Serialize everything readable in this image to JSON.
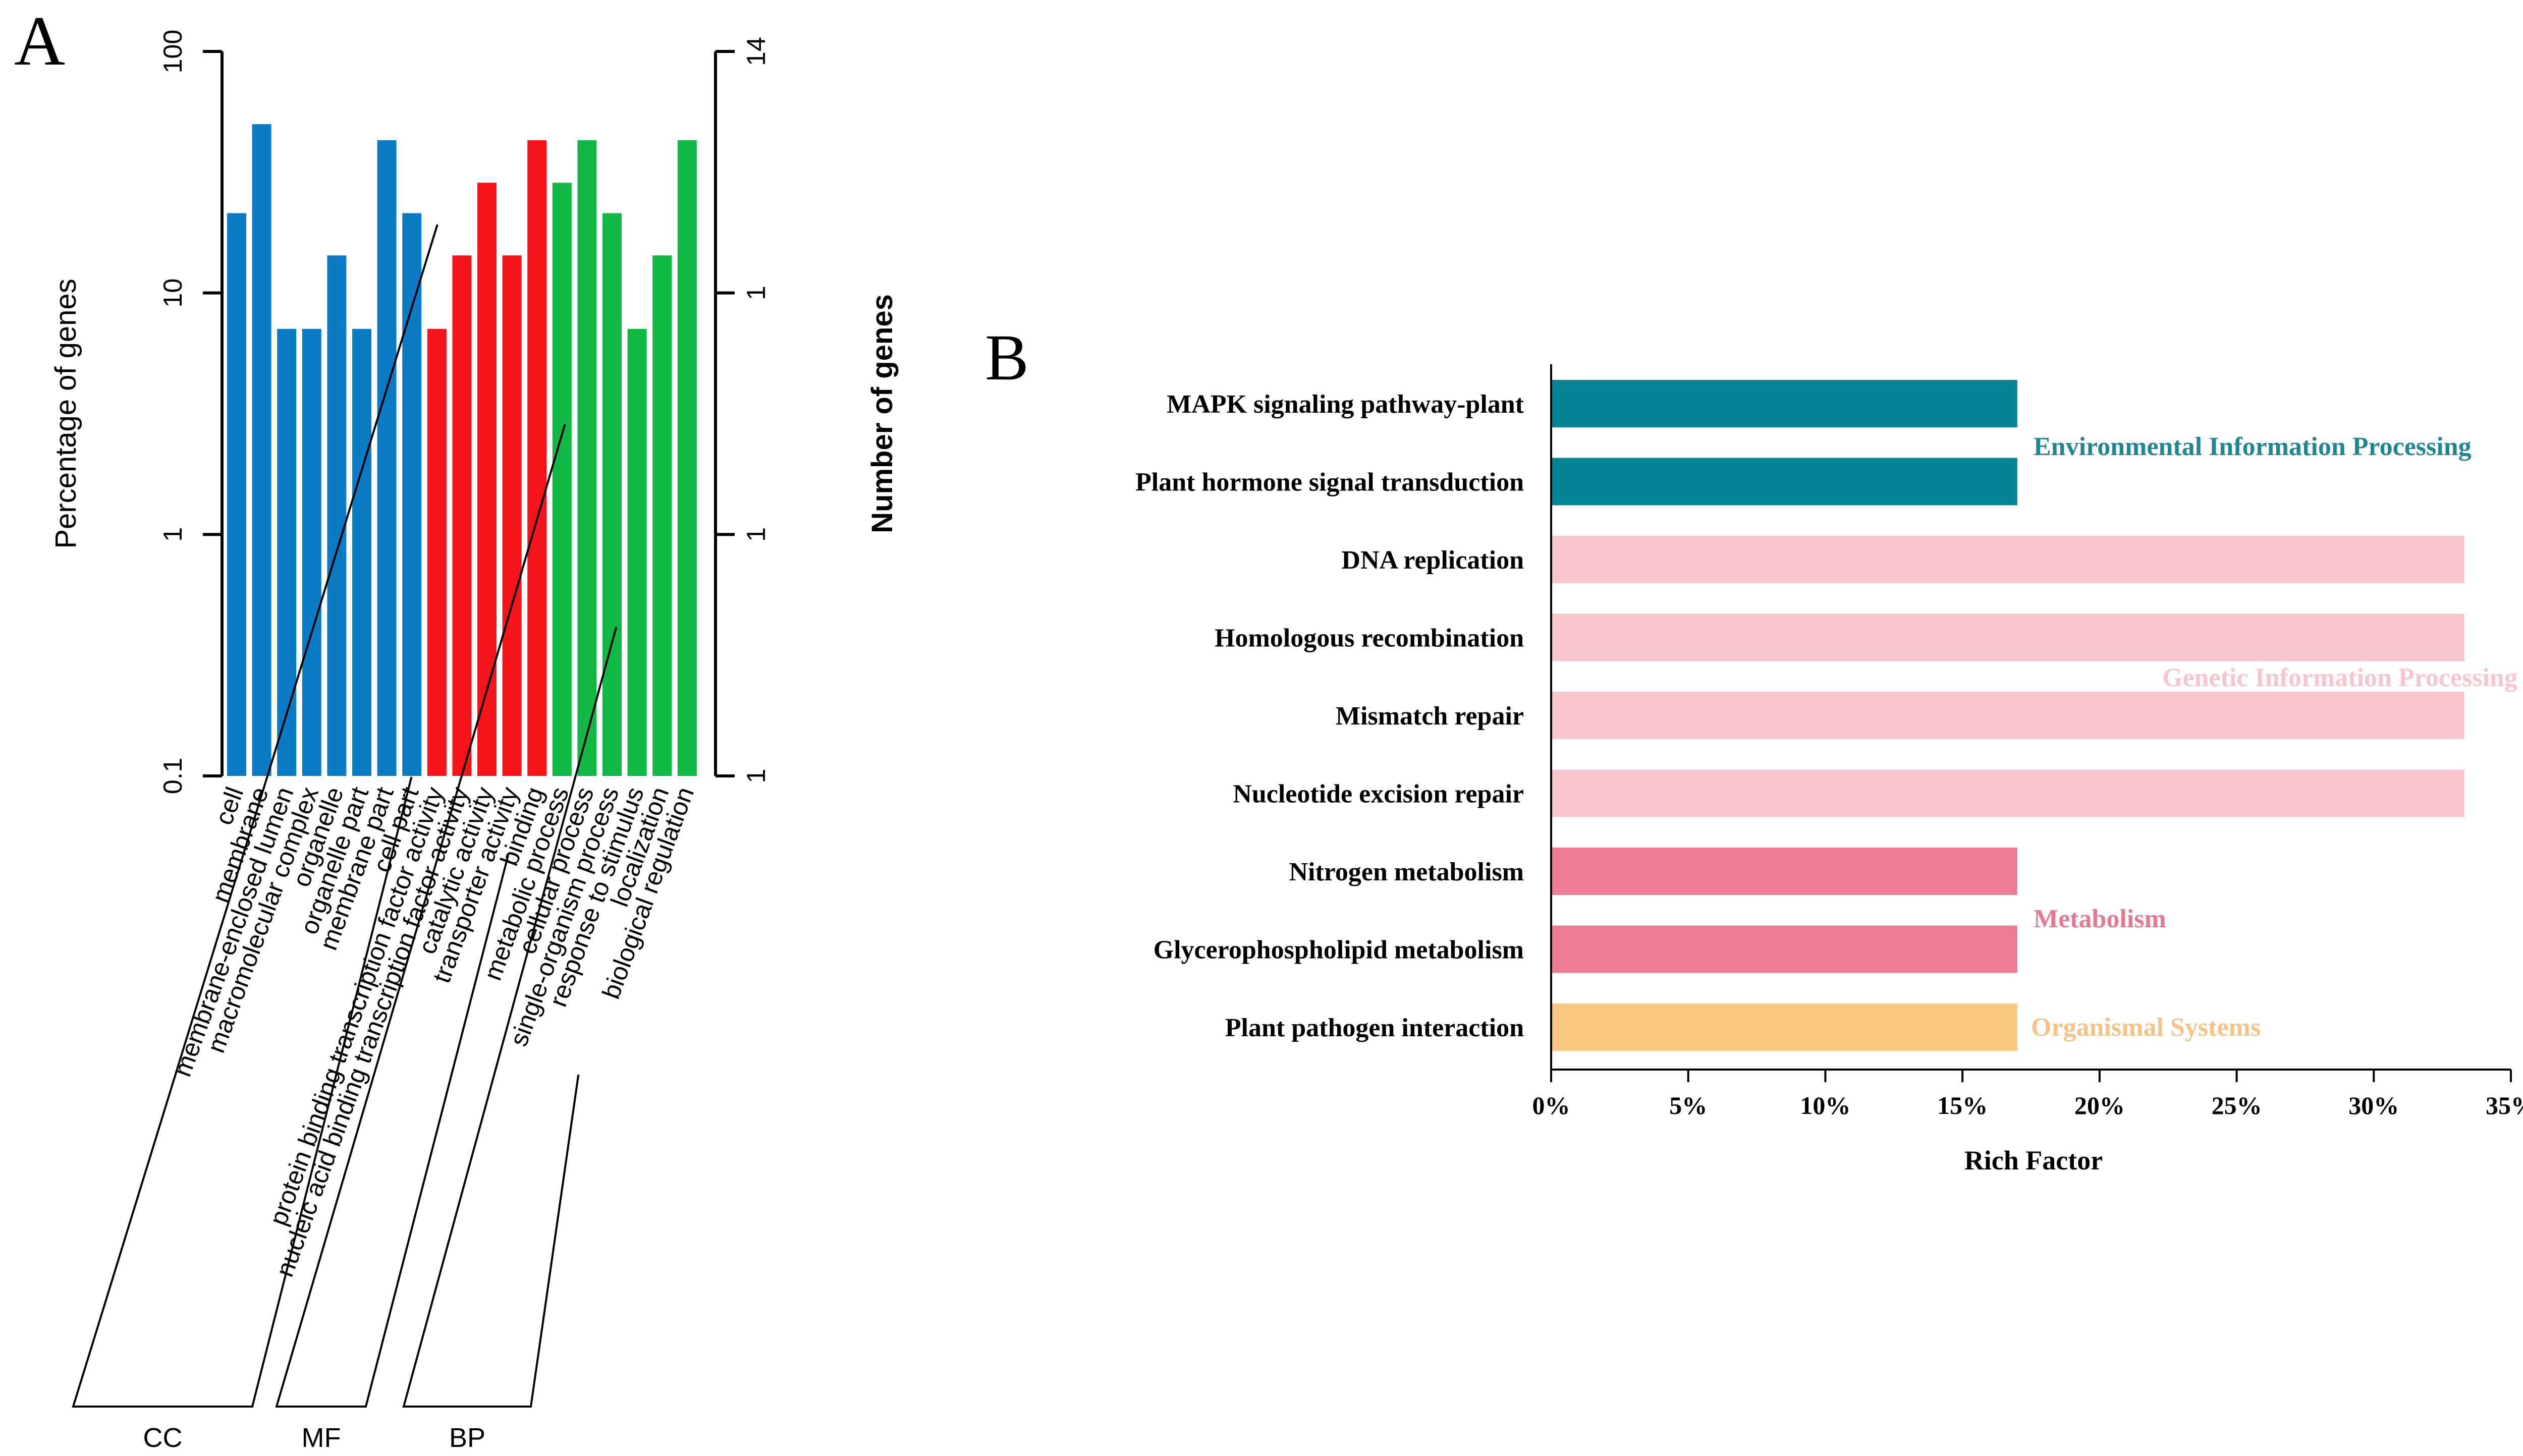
{
  "chart_data": [
    {
      "panel": "A",
      "type": "bar",
      "ylabel": "Percentage of genes",
      "y2label": "Number of genes",
      "yscale": "log",
      "ylim": [
        0.1,
        100
      ],
      "yticks": [
        "0.1",
        "1",
        "10",
        "100"
      ],
      "y2ticks": [
        "1",
        "1",
        "1",
        "14"
      ],
      "categories": [
        "cell",
        "membrane",
        "membrane-enclosed lumen",
        "macromolecular complex",
        "organelle",
        "organelle part",
        "membrane part",
        "cell part",
        "protein binding transcription factor activity",
        "nucleic acid binding transcription factor activity",
        "catalytic activity",
        "transporter activity",
        "binding",
        "metabolic process",
        "cellular process",
        "single-organism process",
        "response to stimulus",
        "localization",
        "biological regulation"
      ],
      "values": [
        21.4,
        50,
        7.1,
        7.1,
        14.3,
        7.1,
        42.9,
        21.4,
        7.1,
        14.3,
        28.6,
        14.3,
        42.9,
        28.6,
        42.9,
        21.4,
        7.1,
        14.3,
        42.9
      ],
      "groups": [
        {
          "name": "CC",
          "start": 0,
          "end": 7,
          "color": "#0a7bc4"
        },
        {
          "name": "MF",
          "start": 8,
          "end": 12,
          "color": "#f5141a"
        },
        {
          "name": "BP",
          "start": 13,
          "end": 18,
          "color": "#11b845"
        }
      ]
    },
    {
      "panel": "B",
      "type": "bar",
      "orientation": "horizontal",
      "xlabel": "Rich Factor",
      "xlim": [
        0,
        35
      ],
      "xticks": [
        "0%",
        "5%",
        "10%",
        "15%",
        "20%",
        "25%",
        "30%",
        "35%"
      ],
      "categories": [
        "MAPK signaling pathway-plant",
        "Plant hormone signal transduction",
        "DNA replication",
        "Homologous recombination",
        "Mismatch repair",
        "Nucleotide excision repair",
        "Nitrogen metabolism",
        "Glycerophospholipid metabolism",
        "Plant pathogen interaction"
      ],
      "values": [
        17,
        17,
        33.3,
        33.3,
        33.3,
        33.3,
        17,
        17,
        17
      ],
      "bar_colors": [
        "#038595",
        "#038595",
        "#f9c5cd",
        "#f9c5cd",
        "#f9c5cd",
        "#f9c5cd",
        "#ee7b94",
        "#ee7b94",
        "#f8c880"
      ],
      "category_groups": [
        {
          "label": "Environmental Information Processing",
          "color": "#21868f",
          "rows": [
            0,
            1
          ]
        },
        {
          "label": "Genetic Information Processing",
          "color": "#f7c5cd",
          "rows": [
            2,
            3,
            4,
            5
          ]
        },
        {
          "label": "Metabolism",
          "color": "#e57a8f",
          "rows": [
            6,
            7
          ]
        },
        {
          "label": "Organismal Systems",
          "color": "#f4c487",
          "rows": [
            8
          ]
        }
      ]
    }
  ],
  "panel_labels": {
    "a": "A",
    "b": "B"
  }
}
